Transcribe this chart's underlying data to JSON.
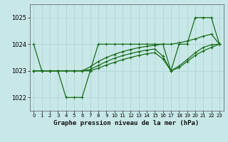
{
  "background_color": "#c8e8e8",
  "plot_bg_color": "#c8e8e8",
  "grid_color": "#b0d4d4",
  "line_color": "#1a6b1a",
  "title": "Graphe pression niveau de la mer (hPa)",
  "ylim": [
    1021.5,
    1025.5
  ],
  "yticks": [
    1022,
    1023,
    1024,
    1025
  ],
  "xlim": [
    -0.5,
    23.5
  ],
  "xticks": [
    0,
    1,
    2,
    3,
    4,
    5,
    6,
    7,
    8,
    9,
    10,
    11,
    12,
    13,
    14,
    15,
    16,
    17,
    18,
    19,
    20,
    21,
    22,
    23
  ],
  "series": [
    [
      1024.0,
      1023.0,
      1023.0,
      1023.0,
      1022.0,
      1022.0,
      1022.0,
      1023.0,
      1024.0,
      1024.0,
      1024.0,
      1024.0,
      1024.0,
      1024.0,
      1024.0,
      1024.0,
      1024.0,
      1023.0,
      1024.0,
      1024.0,
      1025.0,
      1025.0,
      1025.0,
      1024.0
    ],
    [
      1023.0,
      1023.0,
      1023.0,
      1023.0,
      1023.0,
      1023.0,
      1023.0,
      1023.15,
      1023.35,
      1023.5,
      1023.62,
      1023.72,
      1023.8,
      1023.87,
      1023.92,
      1023.96,
      1024.0,
      1024.0,
      1024.05,
      1024.12,
      1024.2,
      1024.3,
      1024.38,
      1024.0
    ],
    [
      1023.0,
      1023.0,
      1023.0,
      1023.0,
      1023.0,
      1023.0,
      1023.0,
      1023.05,
      1023.2,
      1023.35,
      1023.47,
      1023.57,
      1023.65,
      1023.72,
      1023.78,
      1023.82,
      1023.55,
      1023.0,
      1023.18,
      1023.42,
      1023.68,
      1023.88,
      1023.98,
      1024.0
    ],
    [
      1023.0,
      1023.0,
      1023.0,
      1023.0,
      1023.0,
      1023.0,
      1023.0,
      1023.0,
      1023.1,
      1023.22,
      1023.32,
      1023.42,
      1023.5,
      1023.58,
      1023.64,
      1023.68,
      1023.45,
      1023.0,
      1023.12,
      1023.35,
      1023.58,
      1023.75,
      1023.88,
      1024.0
    ]
  ]
}
